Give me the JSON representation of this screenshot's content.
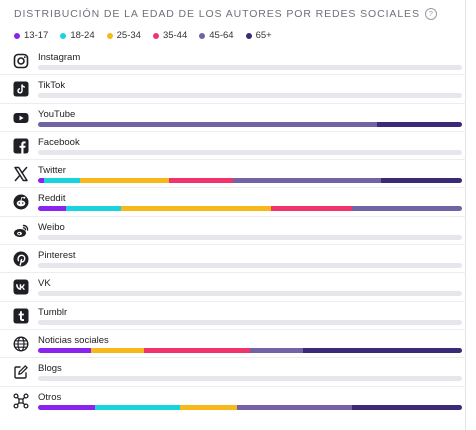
{
  "header": {
    "title": "DISTRIBUCIÓN DE LA EDAD DE LOS AUTORES POR REDES SOCIALES",
    "info_glyph": "?"
  },
  "legend": [
    {
      "label": "13-17",
      "color": "#8a23f0"
    },
    {
      "label": "18-24",
      "color": "#19d3de"
    },
    {
      "label": "25-34",
      "color": "#f7b81b"
    },
    {
      "label": "35-44",
      "color": "#f2346c"
    },
    {
      "label": "45-64",
      "color": "#7263a5"
    },
    {
      "label": "65+",
      "color": "#3b2a78"
    }
  ],
  "networks": [
    {
      "name": "Instagram",
      "icon": "instagram-icon",
      "segments": []
    },
    {
      "name": "TikTok",
      "icon": "tiktok-icon",
      "segments": []
    },
    {
      "name": "YouTube",
      "icon": "youtube-icon",
      "segments": [
        0,
        0,
        0,
        0,
        80,
        20
      ]
    },
    {
      "name": "Facebook",
      "icon": "facebook-icon",
      "segments": []
    },
    {
      "name": "Twitter",
      "icon": "x-twitter-icon",
      "segments": [
        1.5,
        8.5,
        21,
        15,
        35,
        19
      ]
    },
    {
      "name": "Reddit",
      "icon": "reddit-icon",
      "segments": [
        6.5,
        13,
        35.5,
        19,
        26,
        0
      ]
    },
    {
      "name": "Weibo",
      "icon": "weibo-icon",
      "segments": []
    },
    {
      "name": "Pinterest",
      "icon": "pinterest-icon",
      "segments": []
    },
    {
      "name": "VK",
      "icon": "vk-icon",
      "segments": []
    },
    {
      "name": "Tumblr",
      "icon": "tumblr-icon",
      "segments": []
    },
    {
      "name": "Noticias sociales",
      "icon": "globe-icon",
      "segments": [
        12.5,
        0,
        12.5,
        25,
        12.5,
        37.5
      ]
    },
    {
      "name": "Blogs",
      "icon": "edit-icon",
      "segments": []
    },
    {
      "name": "Otros",
      "icon": "network-nodes-icon",
      "segments": [
        13.5,
        20,
        13.5,
        0,
        27,
        26
      ]
    }
  ]
}
